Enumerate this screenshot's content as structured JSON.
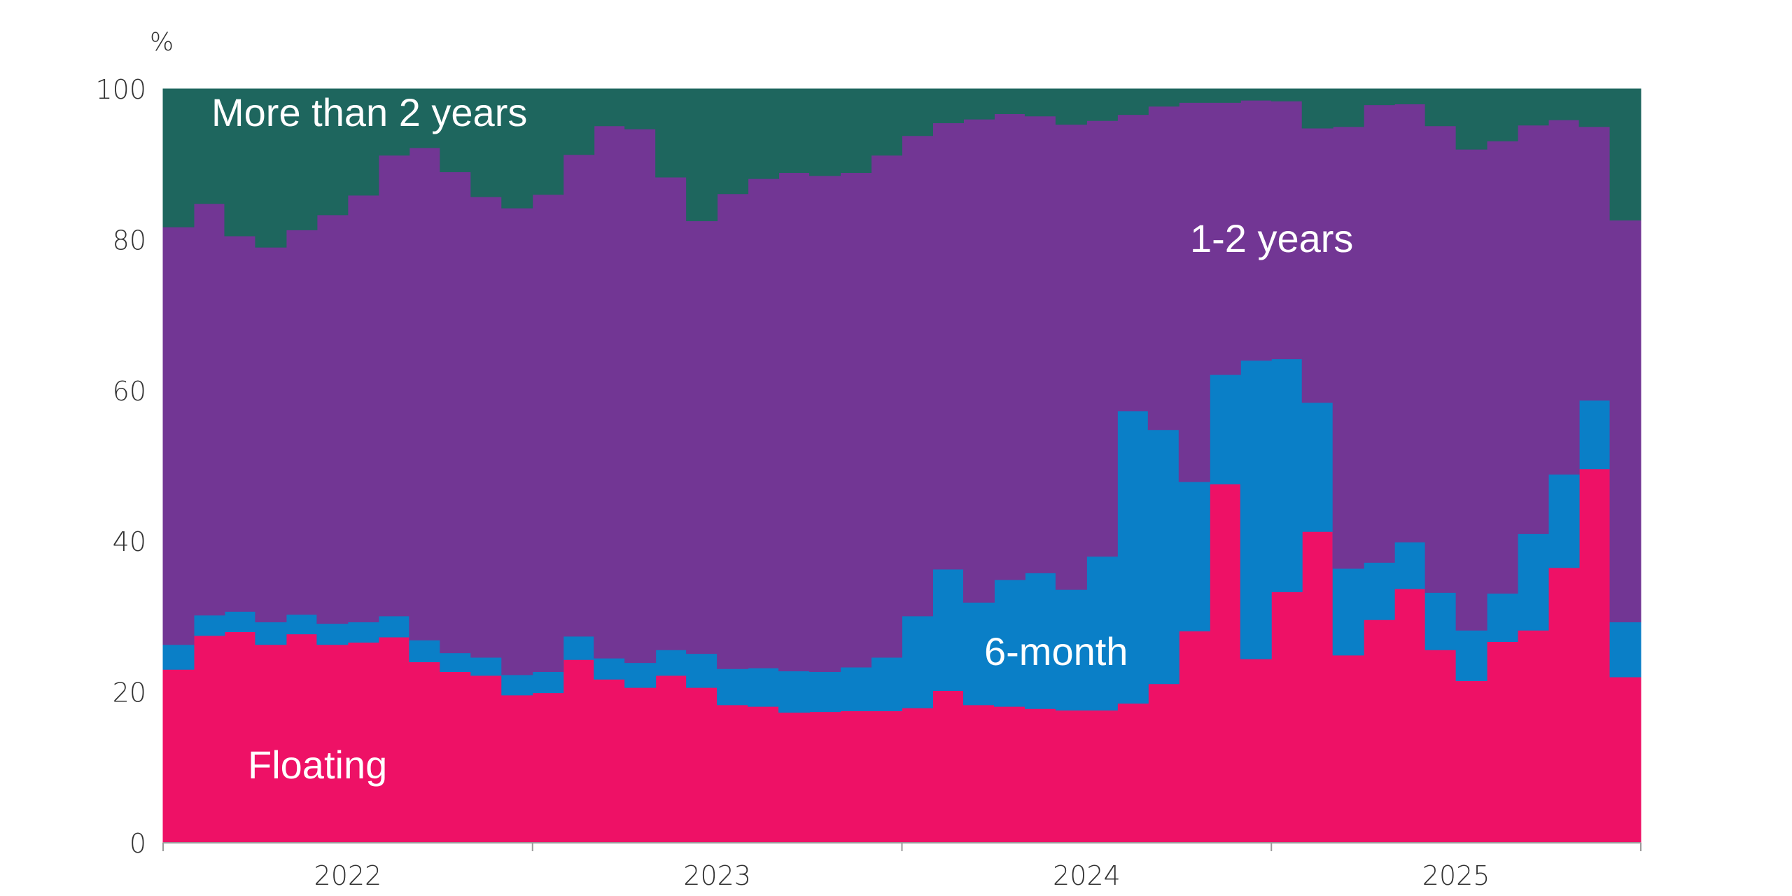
{
  "chart_data": {
    "type": "area",
    "stacked": true,
    "step": true,
    "unit_label": "%",
    "ylim": [
      0,
      100
    ],
    "y_ticks": [
      0,
      20,
      40,
      60,
      80,
      100
    ],
    "x_tick_labels": [
      "2022",
      "2023",
      "2024",
      "2025"
    ],
    "periods_per_year": 12,
    "start_period_index": 0,
    "grid": false,
    "legend": "inline labels",
    "colors": {
      "floating": "#ee1166",
      "six_month": "#0a7fc7",
      "one_two_years": "#723694",
      "more_than_2_years": "#1e665e"
    },
    "series": [
      {
        "name": "Floating",
        "values": [
          23,
          27.5,
          28,
          26.3,
          27.7,
          26.3,
          26.6,
          27.3,
          24,
          22.7,
          22.2,
          19.6,
          19.9,
          24.3,
          21.7,
          20.6,
          22.2,
          20.6,
          18.3,
          18.1,
          17.3,
          17.4,
          17.5,
          17.5,
          17.9,
          20.2,
          18.3,
          18.1,
          17.8,
          17.6,
          17.6,
          18.5,
          21.1,
          28.1,
          47.6,
          24.4,
          33.3,
          41.3,
          24.9,
          29.6,
          33.7,
          25.6,
          21.5,
          26.7,
          28.2,
          36.5,
          49.6,
          22
        ]
      },
      {
        "name": "6-month",
        "values": [
          3.3,
          2.7,
          2.7,
          3,
          2.6,
          2.8,
          2.7,
          2.8,
          2.9,
          2.5,
          2.4,
          2.7,
          2.8,
          3.1,
          2.8,
          3.3,
          3.4,
          4.5,
          4.8,
          5.1,
          5.5,
          5.3,
          5.8,
          7.1,
          12.2,
          16.1,
          13.6,
          16.8,
          18,
          16,
          20.4,
          38.8,
          33.7,
          19.8,
          14.5,
          39.6,
          30.9,
          17.1,
          11.5,
          7.6,
          6.2,
          7.6,
          6.7,
          6.4,
          12.8,
          12.4,
          9.1,
          7.3
        ]
      },
      {
        "name": "1-2 years",
        "values": [
          55.4,
          54.6,
          49.8,
          49.7,
          51,
          54.2,
          56.6,
          61.1,
          65.3,
          63.8,
          61.1,
          61.9,
          63.3,
          63.9,
          70.6,
          70.8,
          62.7,
          57.4,
          63,
          64.9,
          66.1,
          65.8,
          65.6,
          66.6,
          63.7,
          59.2,
          64.1,
          61.8,
          60.6,
          61.7,
          57.8,
          39.3,
          42.9,
          50.3,
          36.1,
          34.5,
          34.2,
          36.4,
          58.6,
          60.7,
          58.1,
          61.9,
          63.8,
          60,
          54.2,
          47,
          36.3,
          53.3
        ]
      },
      {
        "name": "More than 2 years",
        "values": [
          18.3,
          15.2,
          19.5,
          21,
          18.7,
          16.7,
          14.1,
          8.8,
          7.8,
          11,
          14.3,
          15.8,
          14,
          8.7,
          4.9,
          5.3,
          11.7,
          17.5,
          13.9,
          11.9,
          11.1,
          11.5,
          11.1,
          8.8,
          6.2,
          4.5,
          4,
          3.3,
          3.6,
          4.7,
          4.2,
          3.4,
          2.3,
          1.8,
          1.8,
          1.5,
          1.6,
          5.2,
          5,
          2.1,
          2,
          4.9,
          8,
          6.9,
          4.8,
          4.1,
          5,
          17.4
        ]
      }
    ]
  }
}
